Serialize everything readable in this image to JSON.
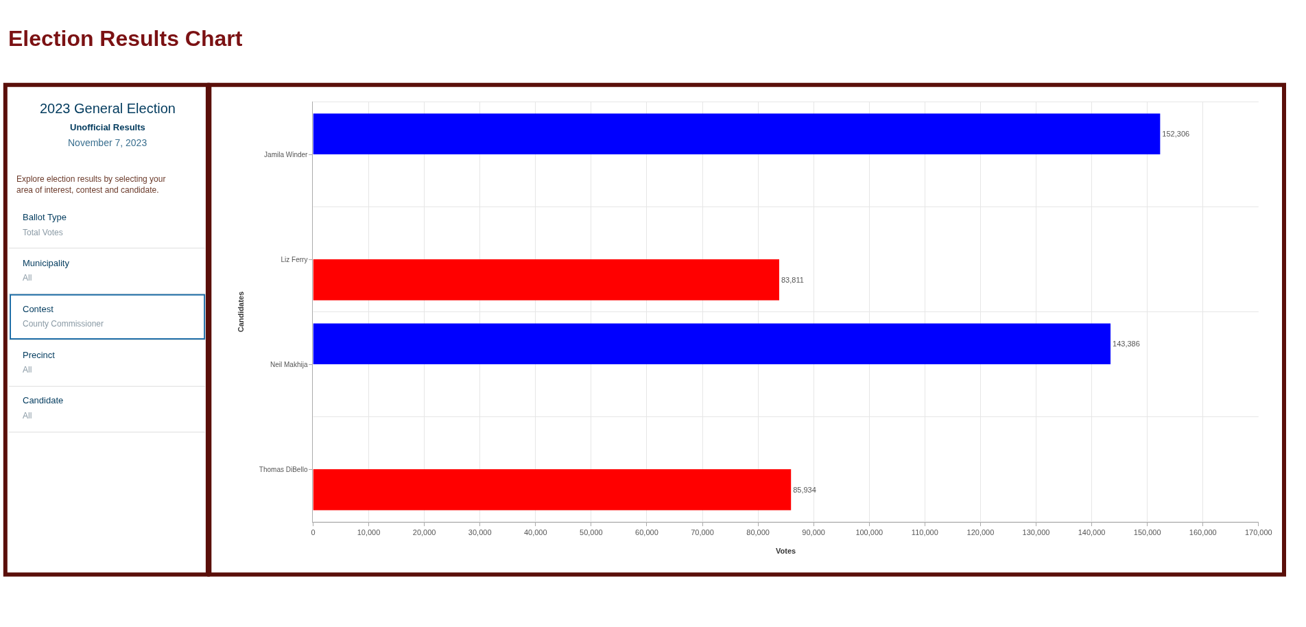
{
  "chart_data": {
    "type": "bar",
    "orientation": "horizontal",
    "title": "Election Results Chart",
    "categories": [
      "Jamila Winder",
      "Liz Ferry",
      "Neil Makhija",
      "Thomas DiBello"
    ],
    "series": [
      {
        "color": "#0000ff",
        "values": [
          152306,
          null,
          143386,
          null
        ],
        "value_labels": [
          "152,306",
          null,
          "143,386",
          null
        ]
      },
      {
        "color": "#ff0000",
        "values": [
          null,
          83811,
          null,
          85934
        ],
        "value_labels": [
          null,
          "83,811",
          null,
          "85,934"
        ]
      }
    ],
    "xlabel": "Votes",
    "ylabel": "Candidates",
    "xlim": [
      0,
      170000
    ],
    "xticks": [
      0,
      {
        "value": 10000,
        "label": "10,000"
      },
      {
        "value": 20000,
        "label": "20,000"
      },
      {
        "value": 30000,
        "label": "30,000"
      },
      {
        "value": 40000,
        "label": "40,000"
      },
      {
        "value": 50000,
        "label": "50,000"
      },
      {
        "value": 60000,
        "label": "60,000"
      },
      {
        "value": 70000,
        "label": "70,000"
      },
      {
        "value": 80000,
        "label": "80,000"
      },
      {
        "value": 90000,
        "label": "90,000"
      },
      {
        "value": 100000,
        "label": "100,000"
      },
      {
        "value": 110000,
        "label": "110,000"
      },
      {
        "value": 120000,
        "label": "120,000"
      },
      {
        "value": 130000,
        "label": "130,000"
      },
      {
        "value": 140000,
        "label": "140,000"
      },
      {
        "value": 150000,
        "label": "150,000"
      },
      {
        "value": 160000,
        "label": "160,000"
      },
      {
        "value": 170000,
        "label": "170,000"
      }
    ],
    "grid": true,
    "annotations": [
      "2023 General Election",
      "Unofficial Results",
      "November 7, 2023",
      "Explore election results by selecting your area of interest, contest and candidate.",
      "Ballot Type",
      "Total Votes",
      "Municipality",
      "All",
      "Contest",
      "County Commissioner",
      "Precinct",
      "All",
      "Candidate",
      "All"
    ]
  }
}
